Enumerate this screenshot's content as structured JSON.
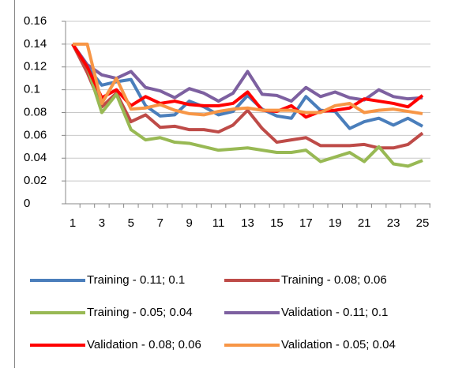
{
  "chart_data": {
    "type": "line",
    "categories": [
      1,
      null,
      3,
      null,
      5,
      null,
      7,
      null,
      9,
      null,
      11,
      null,
      13,
      null,
      15,
      null,
      17,
      null,
      19,
      null,
      21,
      null,
      23,
      null,
      25
    ],
    "series": [
      {
        "name": "Training - 0.11; 0.1",
        "color": "#4a7ebb",
        "values": [
          0.14,
          0.12,
          0.104,
          0.107,
          0.109,
          0.086,
          0.077,
          0.078,
          0.09,
          0.085,
          0.078,
          0.081,
          0.095,
          0.083,
          0.077,
          0.075,
          0.094,
          0.082,
          0.081,
          0.066,
          0.072,
          0.075,
          0.069,
          0.075,
          0.068
        ]
      },
      {
        "name": "Training - 0.08; 0.06",
        "color": "#be4b48",
        "values": [
          0.14,
          0.115,
          0.085,
          0.097,
          0.072,
          0.078,
          0.067,
          0.068,
          0.065,
          0.065,
          0.063,
          0.069,
          0.082,
          0.066,
          0.054,
          0.056,
          0.058,
          0.051,
          0.051,
          0.051,
          0.052,
          0.049,
          0.049,
          0.052,
          0.062
        ]
      },
      {
        "name": "Training - 0.05; 0.04",
        "color": "#98b954",
        "values": [
          0.14,
          0.12,
          0.08,
          0.096,
          0.065,
          0.056,
          0.058,
          0.054,
          0.053,
          0.05,
          0.047,
          0.048,
          0.049,
          0.047,
          0.045,
          0.045,
          0.047,
          0.037,
          0.041,
          0.045,
          0.037,
          0.05,
          0.035,
          0.033,
          0.038
        ]
      },
      {
        "name": "Validation - 0.11; 0.1",
        "color": "#7d60a0",
        "values": [
          0.14,
          0.122,
          0.113,
          0.11,
          0.116,
          0.102,
          0.099,
          0.093,
          0.101,
          0.097,
          0.09,
          0.097,
          0.116,
          0.096,
          0.095,
          0.09,
          0.102,
          0.094,
          0.098,
          0.093,
          0.091,
          0.1,
          0.094,
          0.092,
          0.093
        ]
      },
      {
        "name": "Validation - 0.08; 0.06",
        "color": "#ff0000",
        "values": [
          0.14,
          0.12,
          0.093,
          0.1,
          0.086,
          0.094,
          0.088,
          0.09,
          0.087,
          0.086,
          0.086,
          0.088,
          0.098,
          0.082,
          0.081,
          0.086,
          0.076,
          0.081,
          0.082,
          0.084,
          0.092,
          0.09,
          0.088,
          0.085,
          0.095
        ]
      },
      {
        "name": "Validation - 0.05; 0.04",
        "color": "#f79646",
        "values": [
          0.14,
          0.14,
          0.088,
          0.11,
          0.083,
          0.084,
          0.087,
          0.082,
          0.079,
          0.078,
          0.081,
          0.083,
          0.084,
          0.082,
          0.082,
          0.082,
          0.08,
          0.08,
          0.086,
          0.088,
          0.08,
          0.082,
          0.083,
          0.081,
          0.079
        ]
      }
    ],
    "ylim": [
      0,
      0.16
    ],
    "yticks": [
      0,
      0.02,
      0.04,
      0.06,
      0.08,
      0.1,
      0.12,
      0.14,
      0.16
    ],
    "grid": true,
    "legend": "bottom"
  }
}
